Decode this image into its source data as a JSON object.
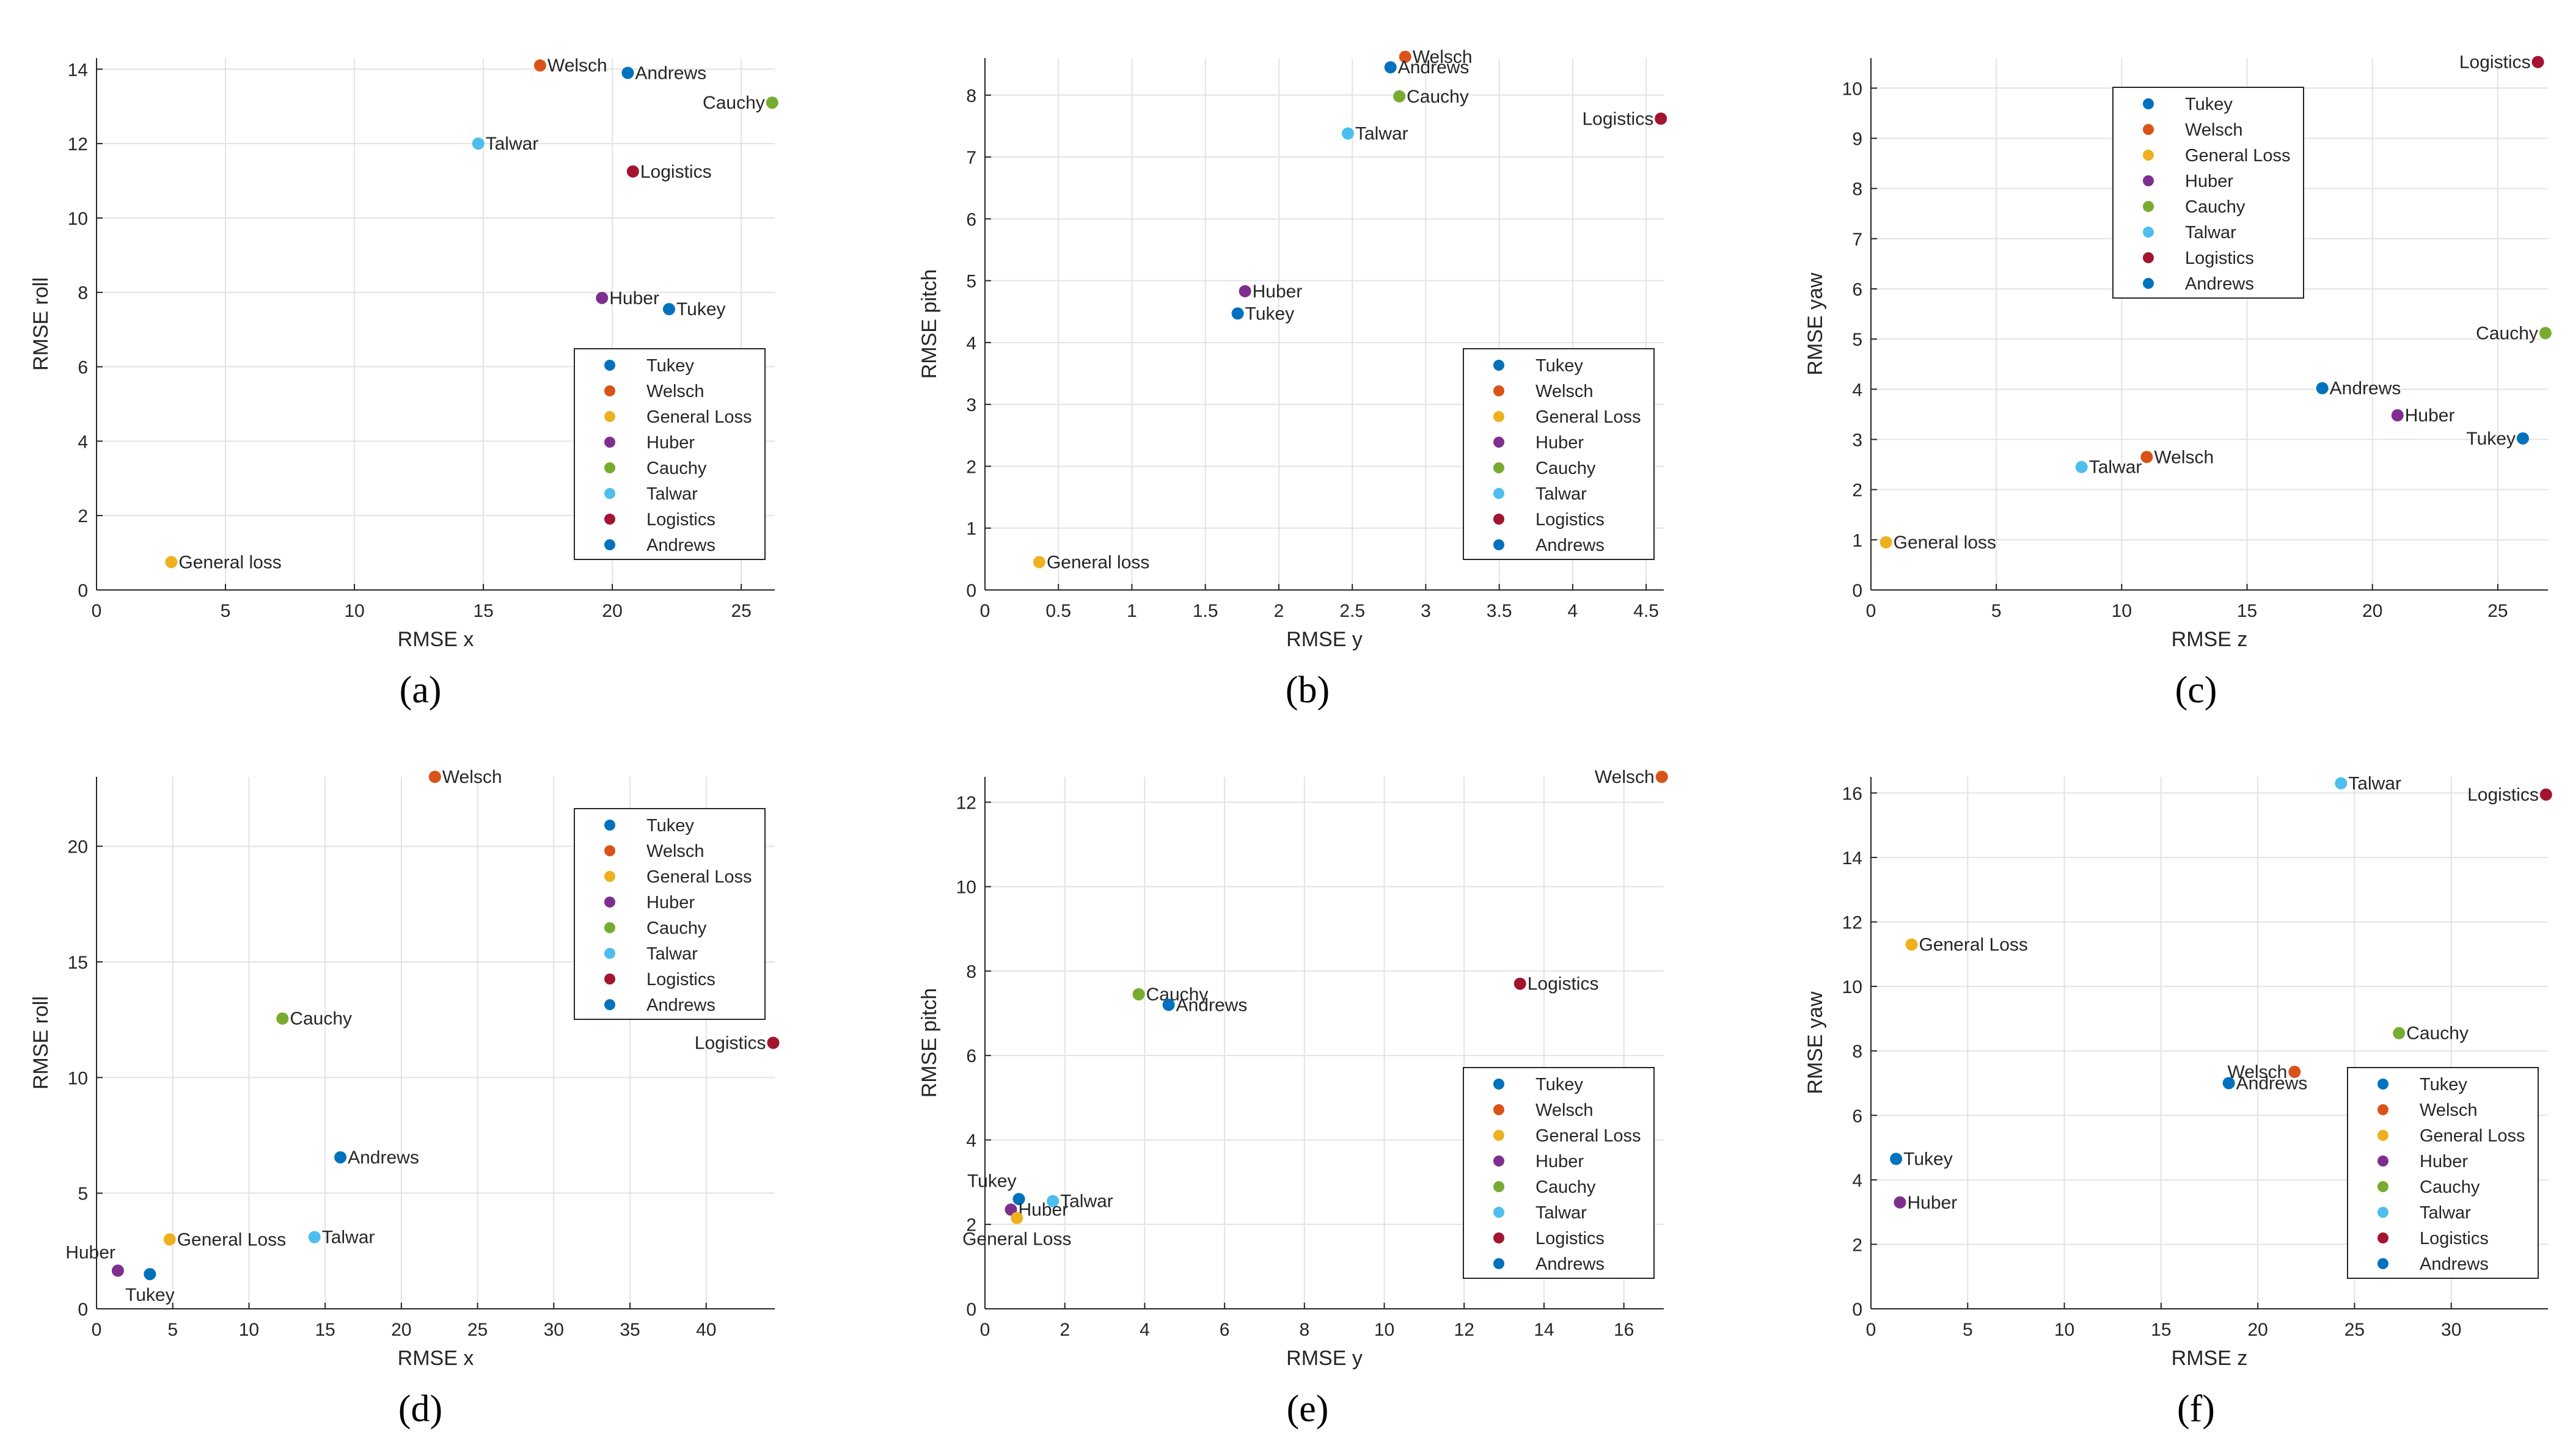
{
  "colors": {
    "Tukey": "#0072BD",
    "Welsch": "#D95319",
    "General Loss": "#EDB120",
    "Huber": "#7E2F8E",
    "Cauchy": "#77AC30",
    "Talwar": "#4DBEEE",
    "Logistics": "#A2142F",
    "Andrews": "#0072BD"
  },
  "chart_data": [
    {
      "type": "scatter",
      "caption": "(a)",
      "xlabel": "RMSE x",
      "ylabel": "RMSE roll",
      "xlim": [
        0,
        26.3
      ],
      "ylim": [
        0,
        14.3
      ],
      "xticks": [
        0,
        5,
        10,
        15,
        20,
        25
      ],
      "yticks": [
        0,
        2,
        4,
        6,
        8,
        10,
        12,
        14
      ],
      "legend": [
        "Tukey",
        "Welsch",
        "General Loss",
        "Huber",
        "Cauchy",
        "Talwar",
        "Logistics",
        "Andrews"
      ],
      "legend_position": "bottom-right",
      "points": [
        {
          "series": "Welsch",
          "label": "Welsch",
          "x": 17.2,
          "y": 14.1,
          "anchor": "right"
        },
        {
          "series": "Andrews",
          "label": "Andrews",
          "x": 20.6,
          "y": 13.9,
          "anchor": "right"
        },
        {
          "series": "Cauchy",
          "label": "Cauchy",
          "x": 26.2,
          "y": 13.1,
          "anchor": "left"
        },
        {
          "series": "Talwar",
          "label": "Talwar",
          "x": 14.8,
          "y": 12.0,
          "anchor": "right"
        },
        {
          "series": "Logistics",
          "label": "Logistics",
          "x": 20.8,
          "y": 11.25,
          "anchor": "right"
        },
        {
          "series": "Huber",
          "label": "Huber",
          "x": 19.6,
          "y": 7.85,
          "anchor": "right"
        },
        {
          "series": "Tukey",
          "label": "Tukey",
          "x": 22.2,
          "y": 7.55,
          "anchor": "right"
        },
        {
          "series": "General Loss",
          "label": "General loss",
          "x": 2.9,
          "y": 0.75,
          "anchor": "right"
        }
      ]
    },
    {
      "type": "scatter",
      "caption": "(b)",
      "xlabel": "RMSE y",
      "ylabel": "RMSE pitch",
      "xlim": [
        0,
        4.62
      ],
      "ylim": [
        0,
        8.6
      ],
      "xticks": [
        0,
        0.5,
        1,
        1.5,
        2,
        2.5,
        3,
        3.5,
        4,
        4.5
      ],
      "yticks": [
        0,
        1,
        2,
        3,
        4,
        5,
        6,
        7,
        8
      ],
      "legend": [
        "Tukey",
        "Welsch",
        "General Loss",
        "Huber",
        "Cauchy",
        "Talwar",
        "Logistics",
        "Andrews"
      ],
      "legend_position": "bottom-right",
      "points": [
        {
          "series": "Welsch",
          "label": "Welsch",
          "x": 2.86,
          "y": 8.62,
          "anchor": "right"
        },
        {
          "series": "Andrews",
          "label": "Andrews",
          "x": 2.76,
          "y": 8.45,
          "anchor": "right"
        },
        {
          "series": "Cauchy",
          "label": "Cauchy",
          "x": 2.82,
          "y": 7.98,
          "anchor": "right"
        },
        {
          "series": "Logistics",
          "label": "Logistics",
          "x": 4.6,
          "y": 7.62,
          "anchor": "left"
        },
        {
          "series": "Talwar",
          "label": "Talwar",
          "x": 2.47,
          "y": 7.38,
          "anchor": "right"
        },
        {
          "series": "Huber",
          "label": "Huber",
          "x": 1.77,
          "y": 4.83,
          "anchor": "right"
        },
        {
          "series": "Tukey",
          "label": "Tukey",
          "x": 1.72,
          "y": 4.47,
          "anchor": "right"
        },
        {
          "series": "General Loss",
          "label": "General loss",
          "x": 0.37,
          "y": 0.45,
          "anchor": "right"
        }
      ]
    },
    {
      "type": "scatter",
      "caption": "(c)",
      "xlabel": "RMSE z",
      "ylabel": "RMSE yaw",
      "xlim": [
        0,
        27.0
      ],
      "ylim": [
        0,
        10.6
      ],
      "xticks": [
        0,
        5,
        10,
        15,
        20,
        25
      ],
      "yticks": [
        0,
        1,
        2,
        3,
        4,
        5,
        6,
        7,
        8,
        9,
        10
      ],
      "legend": [
        "Tukey",
        "Welsch",
        "General Loss",
        "Huber",
        "Cauchy",
        "Talwar",
        "Logistics",
        "Andrews"
      ],
      "legend_position": "top-left",
      "points": [
        {
          "series": "Logistics",
          "label": "Logistics",
          "x": 26.6,
          "y": 10.52,
          "anchor": "left"
        },
        {
          "series": "Cauchy",
          "label": "Cauchy",
          "x": 26.9,
          "y": 5.12,
          "anchor": "left"
        },
        {
          "series": "Andrews",
          "label": "Andrews",
          "x": 18.0,
          "y": 4.02,
          "anchor": "right"
        },
        {
          "series": "Huber",
          "label": "Huber",
          "x": 21.0,
          "y": 3.48,
          "anchor": "right"
        },
        {
          "series": "Tukey",
          "label": "Tukey",
          "x": 26.0,
          "y": 3.02,
          "anchor": "left"
        },
        {
          "series": "Welsch",
          "label": "Welsch",
          "x": 11.0,
          "y": 2.65,
          "anchor": "right"
        },
        {
          "series": "Talwar",
          "label": "Talwar",
          "x": 8.4,
          "y": 2.45,
          "anchor": "right"
        },
        {
          "series": "General Loss",
          "label": "General loss",
          "x": 0.6,
          "y": 0.95,
          "anchor": "right"
        }
      ]
    },
    {
      "type": "scatter",
      "caption": "(d)",
      "xlabel": "RMSE x",
      "ylabel": "RMSE roll",
      "xlim": [
        0,
        44.5
      ],
      "ylim": [
        0,
        23.0
      ],
      "xticks": [
        0,
        5,
        10,
        15,
        20,
        25,
        30,
        35,
        40
      ],
      "yticks": [
        0,
        5,
        10,
        15,
        20
      ],
      "legend": [
        "Tukey",
        "Welsch",
        "General Loss",
        "Huber",
        "Cauchy",
        "Talwar",
        "Logistics",
        "Andrews"
      ],
      "legend_position": "top-right",
      "points": [
        {
          "series": "Welsch",
          "label": "Welsch",
          "x": 22.2,
          "y": 23.0,
          "anchor": "right"
        },
        {
          "series": "Cauchy",
          "label": "Cauchy",
          "x": 12.2,
          "y": 12.55,
          "anchor": "right"
        },
        {
          "series": "Logistics",
          "label": "Logistics",
          "x": 44.4,
          "y": 11.5,
          "anchor": "left"
        },
        {
          "series": "Andrews",
          "label": "Andrews",
          "x": 16.0,
          "y": 6.55,
          "anchor": "right"
        },
        {
          "series": "Talwar",
          "label": "Talwar",
          "x": 14.3,
          "y": 3.1,
          "anchor": "right"
        },
        {
          "series": "General Loss",
          "label": "General Loss",
          "x": 4.8,
          "y": 3.0,
          "anchor": "right"
        },
        {
          "series": "Huber",
          "label": "Huber",
          "x": 1.4,
          "y": 1.65,
          "anchor": "above-left"
        },
        {
          "series": "Tukey",
          "label": "Tukey",
          "x": 3.5,
          "y": 1.5,
          "anchor": "below"
        }
      ]
    },
    {
      "type": "scatter",
      "caption": "(e)",
      "xlabel": "RMSE y",
      "ylabel": "RMSE pitch",
      "xlim": [
        0,
        17.0
      ],
      "ylim": [
        0,
        12.6
      ],
      "xticks": [
        0,
        2,
        4,
        6,
        8,
        10,
        12,
        14,
        16
      ],
      "yticks": [
        0,
        2,
        4,
        6,
        8,
        10,
        12
      ],
      "legend": [
        "Tukey",
        "Welsch",
        "General Loss",
        "Huber",
        "Cauchy",
        "Talwar",
        "Logistics",
        "Andrews"
      ],
      "legend_position": "bottom-right",
      "points": [
        {
          "series": "Welsch",
          "label": "Welsch",
          "x": 16.95,
          "y": 12.6,
          "anchor": "left"
        },
        {
          "series": "Logistics",
          "label": "Logistics",
          "x": 13.4,
          "y": 7.7,
          "anchor": "right"
        },
        {
          "series": "Cauchy",
          "label": "Cauchy",
          "x": 3.85,
          "y": 7.45,
          "anchor": "right"
        },
        {
          "series": "Andrews",
          "label": "Andrews",
          "x": 4.6,
          "y": 7.2,
          "anchor": "right"
        },
        {
          "series": "Tukey",
          "label": "Tukey",
          "x": 0.85,
          "y": 2.6,
          "anchor": "above-left"
        },
        {
          "series": "Talwar",
          "label": "Talwar",
          "x": 1.7,
          "y": 2.55,
          "anchor": "right"
        },
        {
          "series": "Huber",
          "label": "Huber",
          "x": 0.65,
          "y": 2.35,
          "anchor": "right"
        },
        {
          "series": "General Loss",
          "label": "General Loss",
          "x": 0.8,
          "y": 2.15,
          "anchor": "below"
        }
      ]
    },
    {
      "type": "scatter",
      "caption": "(f)",
      "xlabel": "RMSE z",
      "ylabel": "RMSE yaw",
      "xlim": [
        0,
        35.0
      ],
      "ylim": [
        0,
        16.5
      ],
      "xticks": [
        0,
        5,
        10,
        15,
        20,
        25,
        30
      ],
      "yticks": [
        0,
        2,
        4,
        6,
        8,
        10,
        12,
        14,
        16
      ],
      "legend": [
        "Tukey",
        "Welsch",
        "General Loss",
        "Huber",
        "Cauchy",
        "Talwar",
        "Logistics",
        "Andrews"
      ],
      "legend_position": "bottom-right",
      "points": [
        {
          "series": "Talwar",
          "label": "Talwar",
          "x": 24.3,
          "y": 16.3,
          "anchor": "right"
        },
        {
          "series": "Logistics",
          "label": "Logistics",
          "x": 34.9,
          "y": 15.95,
          "anchor": "left"
        },
        {
          "series": "General Loss",
          "label": "General Loss",
          "x": 2.1,
          "y": 11.3,
          "anchor": "right"
        },
        {
          "series": "Cauchy",
          "label": "Cauchy",
          "x": 27.3,
          "y": 8.55,
          "anchor": "right"
        },
        {
          "series": "Welsch",
          "label": "Welsch",
          "x": 21.9,
          "y": 7.35,
          "anchor": "left"
        },
        {
          "series": "Andrews",
          "label": "Andrews",
          "x": 18.5,
          "y": 7.0,
          "anchor": "right"
        },
        {
          "series": "Tukey",
          "label": "Tukey",
          "x": 1.3,
          "y": 4.65,
          "anchor": "right"
        },
        {
          "series": "Huber",
          "label": "Huber",
          "x": 1.5,
          "y": 3.3,
          "anchor": "right"
        }
      ]
    }
  ]
}
